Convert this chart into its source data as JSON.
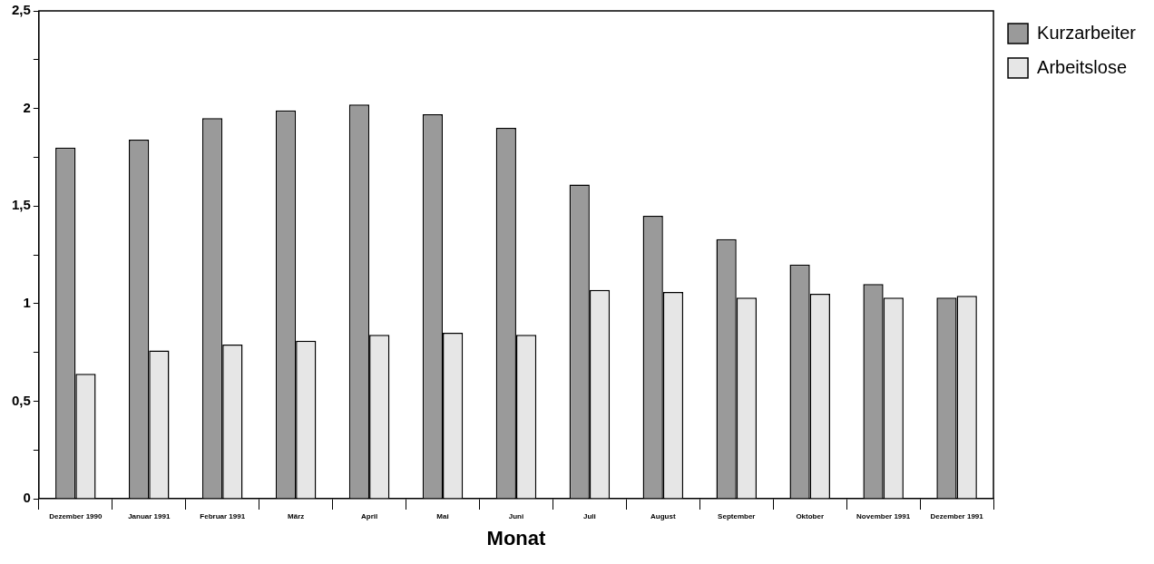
{
  "chart_data": {
    "type": "bar",
    "xlabel": "Monat",
    "categories": [
      "Dezember 1990",
      "Januar 1991",
      "Februar 1991",
      "März",
      "April",
      "Mai",
      "Juni",
      "Juli",
      "August",
      "September",
      "Oktober",
      "November 1991",
      "Dezember 1991"
    ],
    "series": [
      {
        "name": "Kurzarbeiter",
        "color": "#9a9a9a",
        "values": [
          1.8,
          1.84,
          1.95,
          1.99,
          2.02,
          1.97,
          1.9,
          1.61,
          1.45,
          1.33,
          1.2,
          1.1,
          1.03
        ]
      },
      {
        "name": "Arbeitslose",
        "color": "#e6e6e6",
        "values": [
          0.64,
          0.76,
          0.79,
          0.81,
          0.84,
          0.85,
          0.84,
          1.07,
          1.06,
          1.03,
          1.05,
          1.03,
          1.04
        ]
      }
    ],
    "ylim": [
      0,
      2.5
    ],
    "yticks": [
      {
        "value": 0,
        "label": "0"
      },
      {
        "value": 0.25,
        "label": null
      },
      {
        "value": 0.5,
        "label": "0,5"
      },
      {
        "value": 0.75,
        "label": null
      },
      {
        "value": 1,
        "label": "1"
      },
      {
        "value": 1.25,
        "label": null
      },
      {
        "value": 1.5,
        "label": "1,5"
      },
      {
        "value": 1.75,
        "label": null
      },
      {
        "value": 2,
        "label": "2"
      },
      {
        "value": 2.25,
        "label": null
      },
      {
        "value": 2.5,
        "label": "2,5"
      }
    ],
    "grid": false,
    "legend": "top right"
  }
}
